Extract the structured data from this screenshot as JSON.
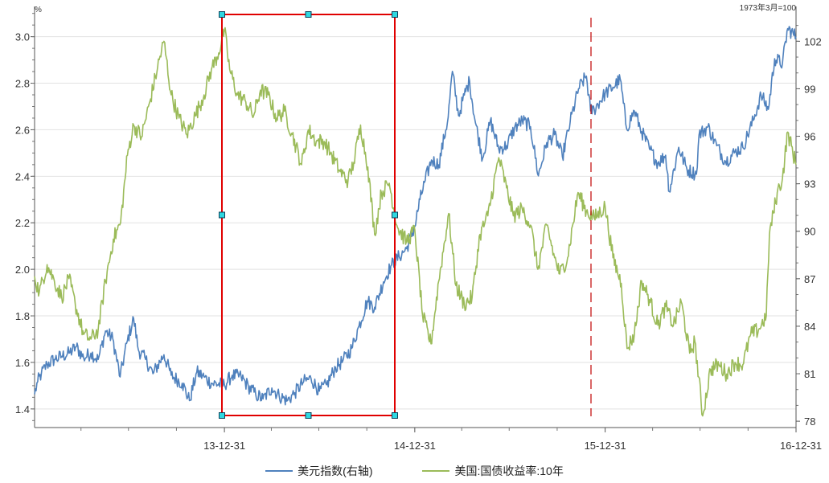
{
  "chart_data": {
    "type": "line",
    "left_axis": {
      "unit": "%",
      "ticks": [
        "1.4",
        "1.6",
        "1.8",
        "2.0",
        "2.2",
        "2.4",
        "2.6",
        "2.8",
        "3.0"
      ],
      "range": [
        1.32,
        3.13
      ]
    },
    "right_axis": {
      "unit": "1973年3月=100",
      "ticks": [
        "78",
        "81",
        "84",
        "87",
        "90",
        "93",
        "96",
        "99",
        "102"
      ],
      "range": [
        77.6,
        104.2
      ]
    },
    "x_axis": {
      "ticks": [
        "13-12-31",
        "14-12-31",
        "15-12-31",
        "16-12-31"
      ],
      "range": [
        "2013-01-01",
        "2016-12-31"
      ]
    },
    "grid": "horizontal",
    "legend_position": "bottom",
    "series": [
      {
        "name": "美元指数(右轴)",
        "axis": "right",
        "color": "#4F81BD",
        "points": [
          [
            "2013-01-01",
            79.7
          ],
          [
            "2013-01-07",
            80.5
          ],
          [
            "2013-01-14",
            81.0
          ],
          [
            "2013-01-25",
            81.6
          ],
          [
            "2013-02-08",
            81.9
          ],
          [
            "2013-02-22",
            82.1
          ],
          [
            "2013-03-08",
            82.3
          ],
          [
            "2013-03-22",
            82.7
          ],
          [
            "2013-04-05",
            82.0
          ],
          [
            "2013-04-19",
            82.3
          ],
          [
            "2013-05-03",
            81.9
          ],
          [
            "2013-05-17",
            83.7
          ],
          [
            "2013-05-31",
            83.2
          ],
          [
            "2013-06-14",
            80.8
          ],
          [
            "2013-06-28",
            83.1
          ],
          [
            "2013-07-10",
            84.5
          ],
          [
            "2013-07-19",
            82.5
          ],
          [
            "2013-08-02",
            81.9
          ],
          [
            "2013-08-16",
            81.0
          ],
          [
            "2013-09-06",
            82.2
          ],
          [
            "2013-09-20",
            80.9
          ],
          [
            "2013-10-11",
            80.4
          ],
          [
            "2013-10-25",
            79.3
          ],
          [
            "2013-11-08",
            81.1
          ],
          [
            "2013-11-22",
            80.8
          ],
          [
            "2013-12-06",
            80.4
          ],
          [
            "2013-12-31",
            80.3
          ],
          [
            "2014-01-15",
            80.9
          ],
          [
            "2014-02-01",
            80.8
          ],
          [
            "2014-02-15",
            80.2
          ],
          [
            "2014-03-01",
            79.7
          ],
          [
            "2014-03-15",
            79.4
          ],
          [
            "2014-04-01",
            80.1
          ],
          [
            "2014-04-15",
            79.6
          ],
          [
            "2014-05-01",
            79.3
          ],
          [
            "2014-05-15",
            79.8
          ],
          [
            "2014-06-01",
            80.5
          ],
          [
            "2014-06-15",
            80.7
          ],
          [
            "2014-07-01",
            79.9
          ],
          [
            "2014-07-15",
            80.3
          ],
          [
            "2014-08-01",
            81.4
          ],
          [
            "2014-08-15",
            81.8
          ],
          [
            "2014-09-01",
            82.6
          ],
          [
            "2014-09-15",
            84.0
          ],
          [
            "2014-10-01",
            85.6
          ],
          [
            "2014-10-15",
            85.2
          ],
          [
            "2014-11-01",
            86.8
          ],
          [
            "2014-11-15",
            87.8
          ],
          [
            "2014-12-01",
            88.4
          ],
          [
            "2014-12-15",
            88.9
          ],
          [
            "2014-12-31",
            90.3
          ],
          [
            "2015-01-10",
            92.0
          ],
          [
            "2015-01-20",
            93.2
          ],
          [
            "2015-02-01",
            94.5
          ],
          [
            "2015-02-15",
            94.2
          ],
          [
            "2015-03-05",
            97.2
          ],
          [
            "2015-03-13",
            100.1
          ],
          [
            "2015-03-25",
            97.3
          ],
          [
            "2015-04-05",
            98.6
          ],
          [
            "2015-04-15",
            99.5
          ],
          [
            "2015-04-25",
            97.1
          ],
          [
            "2015-05-10",
            94.6
          ],
          [
            "2015-05-25",
            97.0
          ],
          [
            "2015-06-10",
            95.2
          ],
          [
            "2015-06-25",
            95.4
          ],
          [
            "2015-07-10",
            96.5
          ],
          [
            "2015-07-25",
            97.0
          ],
          [
            "2015-08-10",
            96.6
          ],
          [
            "2015-08-25",
            93.5
          ],
          [
            "2015-09-10",
            95.6
          ],
          [
            "2015-09-25",
            96.1
          ],
          [
            "2015-10-10",
            94.7
          ],
          [
            "2015-10-25",
            96.9
          ],
          [
            "2015-11-10",
            99.0
          ],
          [
            "2015-11-25",
            99.8
          ],
          [
            "2015-12-03",
            97.6
          ],
          [
            "2015-12-10",
            97.7
          ],
          [
            "2015-12-31",
            98.7
          ],
          [
            "2016-01-15",
            99.1
          ],
          [
            "2016-01-29",
            99.6
          ],
          [
            "2016-02-10",
            96.5
          ],
          [
            "2016-02-25",
            97.6
          ],
          [
            "2016-03-10",
            96.3
          ],
          [
            "2016-03-25",
            95.2
          ],
          [
            "2016-04-10",
            94.3
          ],
          [
            "2016-04-25",
            94.8
          ],
          [
            "2016-05-02",
            92.5
          ],
          [
            "2016-05-20",
            95.3
          ],
          [
            "2016-06-05",
            93.9
          ],
          [
            "2016-06-23",
            93.6
          ],
          [
            "2016-06-28",
            96.1
          ],
          [
            "2016-07-15",
            96.6
          ],
          [
            "2016-08-01",
            95.4
          ],
          [
            "2016-08-18",
            94.4
          ],
          [
            "2016-09-05",
            95.0
          ],
          [
            "2016-09-20",
            95.3
          ],
          [
            "2016-10-10",
            97.0
          ],
          [
            "2016-10-25",
            98.6
          ],
          [
            "2016-11-08",
            97.7
          ],
          [
            "2016-11-20",
            100.9
          ],
          [
            "2016-12-05",
            100.6
          ],
          [
            "2016-12-15",
            102.8
          ],
          [
            "2016-12-31",
            102.3
          ]
        ]
      },
      {
        "name": "美国:国债收益率:10年",
        "axis": "left",
        "color": "#9BBB59",
        "points": [
          [
            "2013-01-01",
            1.97
          ],
          [
            "2013-01-10",
            1.9
          ],
          [
            "2013-01-25",
            2.02
          ],
          [
            "2013-02-08",
            1.95
          ],
          [
            "2013-02-22",
            1.88
          ],
          [
            "2013-03-08",
            1.96
          ],
          [
            "2013-03-20",
            1.85
          ],
          [
            "2013-04-05",
            1.72
          ],
          [
            "2013-04-19",
            1.7
          ],
          [
            "2013-05-03",
            1.74
          ],
          [
            "2013-05-17",
            1.95
          ],
          [
            "2013-06-01",
            2.13
          ],
          [
            "2013-06-15",
            2.2
          ],
          [
            "2013-06-28",
            2.49
          ],
          [
            "2013-07-10",
            2.62
          ],
          [
            "2013-07-25",
            2.57
          ],
          [
            "2013-08-10",
            2.72
          ],
          [
            "2013-08-25",
            2.87
          ],
          [
            "2013-09-06",
            2.98
          ],
          [
            "2013-09-20",
            2.75
          ],
          [
            "2013-10-05",
            2.65
          ],
          [
            "2013-10-20",
            2.58
          ],
          [
            "2013-11-05",
            2.66
          ],
          [
            "2013-11-22",
            2.75
          ],
          [
            "2013-12-06",
            2.86
          ],
          [
            "2013-12-20",
            2.93
          ],
          [
            "2013-12-31",
            3.03
          ],
          [
            "2014-01-10",
            2.86
          ],
          [
            "2014-01-25",
            2.75
          ],
          [
            "2014-02-10",
            2.72
          ],
          [
            "2014-02-25",
            2.66
          ],
          [
            "2014-03-10",
            2.77
          ],
          [
            "2014-03-25",
            2.75
          ],
          [
            "2014-04-10",
            2.65
          ],
          [
            "2014-04-25",
            2.68
          ],
          [
            "2014-05-10",
            2.58
          ],
          [
            "2014-05-28",
            2.45
          ],
          [
            "2014-06-10",
            2.6
          ],
          [
            "2014-06-25",
            2.55
          ],
          [
            "2014-07-10",
            2.55
          ],
          [
            "2014-07-25",
            2.49
          ],
          [
            "2014-08-10",
            2.42
          ],
          [
            "2014-08-25",
            2.38
          ],
          [
            "2014-09-05",
            2.46
          ],
          [
            "2014-09-18",
            2.62
          ],
          [
            "2014-10-02",
            2.44
          ],
          [
            "2014-10-15",
            2.15
          ],
          [
            "2014-10-28",
            2.33
          ],
          [
            "2014-11-12",
            2.37
          ],
          [
            "2014-11-28",
            2.18
          ],
          [
            "2014-12-15",
            2.12
          ],
          [
            "2014-12-31",
            2.17
          ],
          [
            "2015-01-15",
            1.8
          ],
          [
            "2015-01-31",
            1.68
          ],
          [
            "2015-02-15",
            1.95
          ],
          [
            "2015-03-06",
            2.24
          ],
          [
            "2015-03-20",
            1.93
          ],
          [
            "2015-04-05",
            1.85
          ],
          [
            "2015-04-20",
            1.88
          ],
          [
            "2015-05-05",
            2.15
          ],
          [
            "2015-05-20",
            2.23
          ],
          [
            "2015-06-10",
            2.48
          ],
          [
            "2015-06-25",
            2.35
          ],
          [
            "2015-07-08",
            2.23
          ],
          [
            "2015-07-25",
            2.26
          ],
          [
            "2015-08-10",
            2.19
          ],
          [
            "2015-08-24",
            2.0
          ],
          [
            "2015-09-10",
            2.19
          ],
          [
            "2015-09-25",
            2.05
          ],
          [
            "2015-10-05",
            1.98
          ],
          [
            "2015-10-20",
            2.05
          ],
          [
            "2015-11-09",
            2.33
          ],
          [
            "2015-11-25",
            2.25
          ],
          [
            "2015-12-10",
            2.22
          ],
          [
            "2015-12-31",
            2.27
          ],
          [
            "2016-01-15",
            2.05
          ],
          [
            "2016-01-31",
            1.94
          ],
          [
            "2016-02-11",
            1.66
          ],
          [
            "2016-02-25",
            1.72
          ],
          [
            "2016-03-10",
            1.95
          ],
          [
            "2016-03-25",
            1.87
          ],
          [
            "2016-04-10",
            1.76
          ],
          [
            "2016-04-25",
            1.84
          ],
          [
            "2016-05-10",
            1.76
          ],
          [
            "2016-05-25",
            1.86
          ],
          [
            "2016-06-10",
            1.64
          ],
          [
            "2016-06-20",
            1.69
          ],
          [
            "2016-07-05",
            1.37
          ],
          [
            "2016-07-20",
            1.57
          ],
          [
            "2016-08-05",
            1.59
          ],
          [
            "2016-08-20",
            1.55
          ],
          [
            "2016-09-05",
            1.6
          ],
          [
            "2016-09-20",
            1.59
          ],
          [
            "2016-10-05",
            1.72
          ],
          [
            "2016-10-20",
            1.74
          ],
          [
            "2016-11-04",
            1.8
          ],
          [
            "2016-11-10",
            2.15
          ],
          [
            "2016-11-25",
            2.33
          ],
          [
            "2016-12-05",
            2.39
          ],
          [
            "2016-12-15",
            2.59
          ],
          [
            "2016-12-31",
            2.45
          ]
        ]
      }
    ],
    "annotations": [
      {
        "type": "selection_rectangle",
        "color": "#E00000",
        "x_range": [
          "2013-12-31",
          "2014-12-31"
        ]
      },
      {
        "type": "dashed_vertical_line",
        "color": "#C00000",
        "x": "2015-12-10"
      }
    ]
  }
}
